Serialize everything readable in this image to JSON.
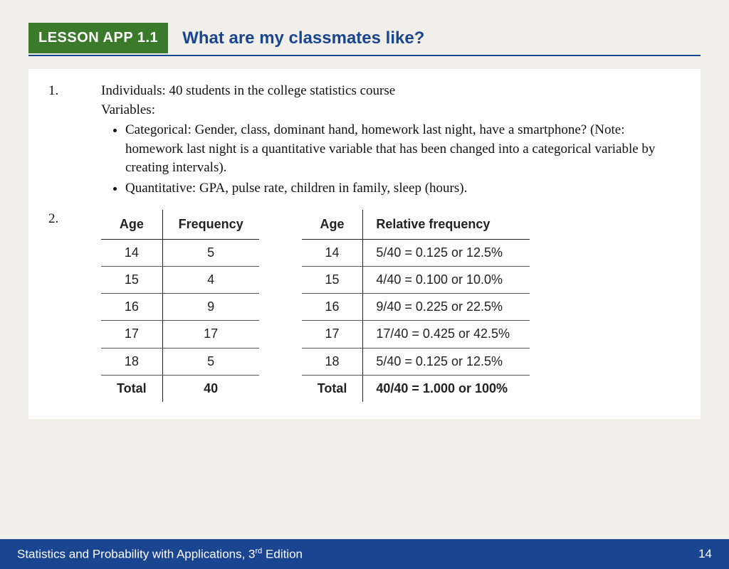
{
  "header": {
    "badge": "LESSON APP 1.1",
    "title": "What are my classmates like?"
  },
  "q1": {
    "num": "1.",
    "individuals": "Individuals: 40 students in the college statistics course",
    "variables_label": "Variables:",
    "bullet_cat": "Categorical: Gender, class, dominant hand, homework last night, have a smartphone? (Note: homework last night is a quantitative variable that has been changed into a categorical variable by creating intervals).",
    "bullet_quant": "Quantitative: GPA, pulse rate, children in family, sleep (hours)."
  },
  "q2": {
    "num": "2."
  },
  "freq_table": {
    "header_age": "Age",
    "header_freq": "Frequency",
    "rows": [
      {
        "age": "14",
        "freq": "5"
      },
      {
        "age": "15",
        "freq": "4"
      },
      {
        "age": "16",
        "freq": "9"
      },
      {
        "age": "17",
        "freq": "17"
      },
      {
        "age": "18",
        "freq": "5"
      }
    ],
    "total_label": "Total",
    "total_value": "40"
  },
  "rel_table": {
    "header_age": "Age",
    "header_rel": "Relative frequency",
    "rows": [
      {
        "age": "14",
        "rel": "5/40 = 0.125 or 12.5%"
      },
      {
        "age": "15",
        "rel": "4/40 = 0.100 or 10.0%"
      },
      {
        "age": "16",
        "rel": "9/40 = 0.225 or 22.5%"
      },
      {
        "age": "17",
        "rel": "17/40 = 0.425 or 42.5%"
      },
      {
        "age": "18",
        "rel": "5/40 = 0.125 or 12.5%"
      }
    ],
    "total_label": "Total",
    "total_value": "40/40 = 1.000 or 100%"
  },
  "footer": {
    "book_prefix": "Statistics and Probability with Applications, 3",
    "book_sup": "rd",
    "book_suffix": " Edition",
    "page": "14"
  },
  "colors": {
    "badge_bg": "#3a7a2a",
    "title_color": "#1a4590",
    "footer_bg": "#1a4590",
    "page_bg": "#f0efe9",
    "content_bg": "#ffffff"
  }
}
